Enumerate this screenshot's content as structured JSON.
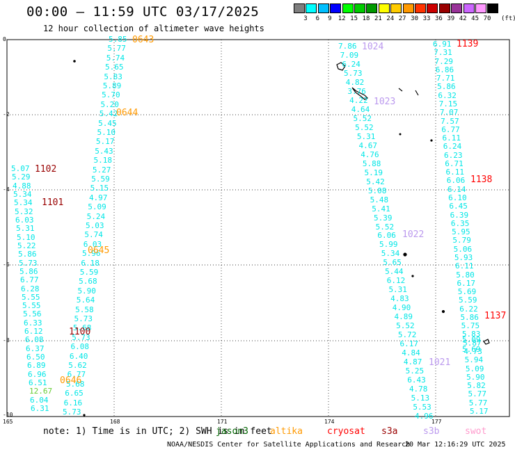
{
  "title": "00:00 – 11:59 UTC 03/17/2025",
  "subtitle": "12 hour collection of altimeter wave heights",
  "colorbar": {
    "colors": [
      "#7f7f7f",
      "#00ffff",
      "#00bfff",
      "#0000ff",
      "#00ff00",
      "#00cc00",
      "#009900",
      "#ffff00",
      "#ffcc00",
      "#ff9900",
      "#ff3300",
      "#cc0000",
      "#990000",
      "#993399",
      "#cc66ff",
      "#ff99ff",
      "#000000"
    ],
    "labels": [
      "3",
      "6",
      "9",
      "12",
      "15",
      "18",
      "21",
      "24",
      "27",
      "30",
      "33",
      "36",
      "39",
      "42",
      "45",
      "70"
    ],
    "unit": "(ft)"
  },
  "axes": {
    "y_ticks": [
      "0",
      "-2",
      "-4",
      "-6",
      "-8",
      "-10"
    ],
    "x_ticks": [
      "165",
      "168",
      "171",
      "174",
      "177"
    ]
  },
  "track_colors": {
    "jason3": "#00e6e6",
    "cryosat": "#00e6e6",
    "s3a": "#00e6e6",
    "s3b": "#00e6e6",
    "swot": "#00e6e6"
  },
  "tracks": {
    "a": [
      "5.85",
      "5.77",
      "5.74",
      "5.65",
      "5.83",
      "5.89",
      "5.70",
      "5.20",
      "5.42",
      "5.45",
      "5.10",
      "5.17",
      "5.43",
      "5.18",
      "5.27",
      "5.59",
      "5.15",
      "4.97",
      "5.09",
      "5.24",
      "5.03",
      "5.74",
      "6.03",
      "5.96",
      "6.18",
      "5.59",
      "5.68",
      "5.90",
      "5.64",
      "5.58",
      "5.73",
      "5.68",
      "5.73",
      "6.08",
      "6.40",
      "5.62",
      "6.77",
      "5.68",
      "6.65",
      "6.16",
      "5.73"
    ],
    "b": [
      "5.07",
      "5.29",
      "4.88",
      "5.34",
      "5.34",
      "5.32",
      "6.03",
      "5.31",
      "5.10",
      "5.22",
      "5.86",
      "5.73",
      "5.86",
      "6.77",
      "6.28",
      "5.55",
      "5.55",
      "5.56",
      "6.33",
      "6.12",
      "6.08",
      "6.37",
      "6.50",
      "6.89",
      "6.96",
      "6.51",
      "12.67",
      "6.04",
      "6.31"
    ],
    "c": [
      "7.86",
      "7.09",
      "6.24",
      "5.73",
      "4.82",
      "3.76",
      "4.22",
      "4.64",
      "5.52",
      "5.52",
      "5.31",
      "4.67",
      "4.76",
      "5.88",
      "5.19",
      "5.42",
      "5.08",
      "5.48",
      "5.41",
      "5.39",
      "5.52",
      "6.06",
      "5.99",
      "5.34",
      "5.65",
      "5.44",
      "6.12",
      "5.31",
      "4.83",
      "4.90",
      "4.89",
      "5.52",
      "5.72",
      "6.17",
      "4.84",
      "4.87",
      "5.25",
      "6.43",
      "4.78",
      "5.13",
      "5.53",
      "4.96"
    ],
    "d": [
      "6.91",
      "7.31",
      "7.29",
      "6.86",
      "7.71",
      "5.86",
      "6.32",
      "7.15",
      "7.07",
      "7.57",
      "6.77",
      "6.11",
      "6.24",
      "6.23",
      "6.71",
      "6.11",
      "6.06",
      "6.14",
      "6.10",
      "6.45",
      "6.39",
      "6.35",
      "5.95",
      "5.79",
      "5.06",
      "5.93",
      "6.11",
      "5.80",
      "6.17",
      "5.69",
      "5.59",
      "6.22",
      "5.86",
      "5.75",
      "5.83",
      "5.87",
      "4.73",
      "5.94",
      "5.09",
      "5.90",
      "5.82",
      "5.77",
      "5.77",
      "5.17"
    ],
    "e": [
      "5.09",
      "5.69"
    ]
  },
  "time_labels": [
    {
      "text": "0643",
      "color": "#ff9900"
    },
    {
      "text": "0644",
      "color": "#ff9900"
    },
    {
      "text": "0645",
      "color": "#ff9900"
    },
    {
      "text": "0646",
      "color": "#ff9900"
    },
    {
      "text": "1102",
      "color": "#990000"
    },
    {
      "text": "1101",
      "color": "#990000"
    },
    {
      "text": "1100",
      "color": "#990000"
    },
    {
      "text": "1024",
      "color": "#bb99ee"
    },
    {
      "text": "1023",
      "color": "#bb99ee"
    },
    {
      "text": "1022",
      "color": "#bb99ee"
    },
    {
      "text": "1021",
      "color": "#bb99ee"
    },
    {
      "text": "1139",
      "color": "#ff0000"
    },
    {
      "text": "1138",
      "color": "#ff0000"
    },
    {
      "text": "1137",
      "color": "#ff0000"
    }
  ],
  "note": "note: 1) Time is in UTC; 2) SWH is in feet",
  "legend": [
    {
      "name": "jason3",
      "color": "#006600"
    },
    {
      "name": "altika",
      "color": "#ff9900"
    },
    {
      "name": "cryosat",
      "color": "#ff0000"
    },
    {
      "name": "s3a",
      "color": "#990000"
    },
    {
      "name": "s3b",
      "color": "#bb99ee"
    },
    {
      "name": "swot",
      "color": "#ff99cc"
    }
  ],
  "footer_left": "NOAA/NESDIS Center for Satellite Applications and Research",
  "footer_right": "20 Mar 12:16:29 UTC 2025"
}
